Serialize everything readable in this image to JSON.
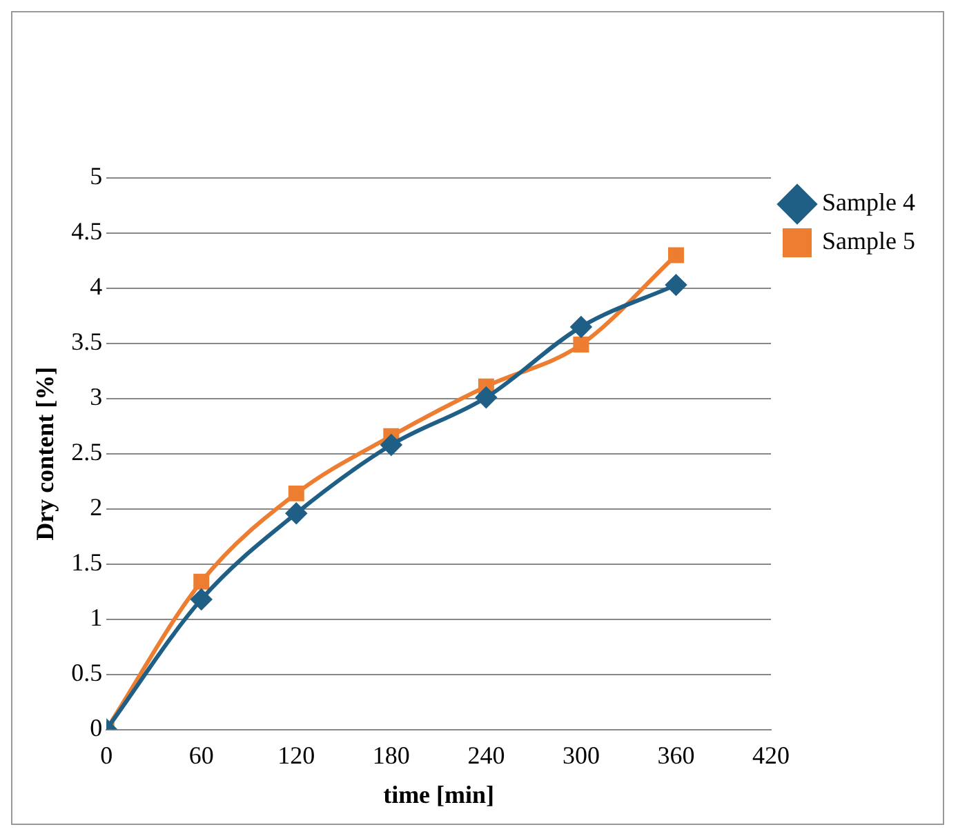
{
  "chart_data": {
    "type": "line",
    "xlabel": "time [min]",
    "ylabel": "Dry content [%]",
    "x": [
      0,
      60,
      120,
      180,
      240,
      300,
      360
    ],
    "xlim": [
      0,
      420
    ],
    "xticks": [
      0,
      60,
      120,
      180,
      240,
      300,
      360,
      420
    ],
    "ylim": [
      0,
      5
    ],
    "yticks": [
      0,
      0.5,
      1,
      1.5,
      2,
      2.5,
      3,
      3.5,
      4,
      4.5,
      5
    ],
    "grid": "y",
    "legend": "right",
    "series": [
      {
        "name": "Sample 4",
        "color": "#1f5f86",
        "marker": "diamond",
        "values": [
          0,
          1.18,
          1.96,
          2.58,
          3.01,
          3.65,
          4.03
        ]
      },
      {
        "name": "Sample 5",
        "color": "#ed7d31",
        "marker": "square",
        "values": [
          0,
          1.34,
          2.14,
          2.66,
          3.11,
          3.49,
          4.3
        ]
      }
    ]
  }
}
